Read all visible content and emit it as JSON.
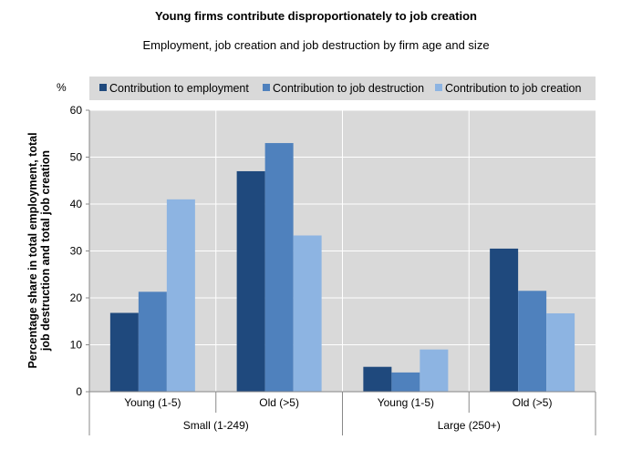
{
  "chart_data": {
    "type": "bar",
    "title": "Young firms contribute disproportionately to job creation",
    "subtitle": "Employment, job creation and job destruction by firm age and size",
    "unit_label": "%",
    "ylabel": "Percentage share in total employment, total job destruction and total job creation",
    "ylim": [
      0,
      60
    ],
    "yticks": [
      0,
      10,
      20,
      30,
      40,
      50,
      60
    ],
    "grid": true,
    "legend_position": "top",
    "categories": [
      "Young (1-5)",
      "Old (>5)",
      "Young (1-5)",
      "Old (>5)"
    ],
    "groups": [
      {
        "label": "Small (1-249)",
        "span": 2
      },
      {
        "label": "Large (250+)",
        "span": 2
      }
    ],
    "series": [
      {
        "name": "Contribution to employment",
        "color": "#1F497D",
        "values": [
          16.8,
          47.0,
          5.3,
          30.5
        ]
      },
      {
        "name": "Contribution to job destruction",
        "color": "#4F81BD",
        "values": [
          21.3,
          53.0,
          4.1,
          21.5
        ]
      },
      {
        "name": "Contribution to job creation",
        "color": "#8DB4E2",
        "values": [
          41.0,
          33.3,
          9.0,
          16.7
        ]
      }
    ],
    "plot_background": "#D9D9D9"
  }
}
